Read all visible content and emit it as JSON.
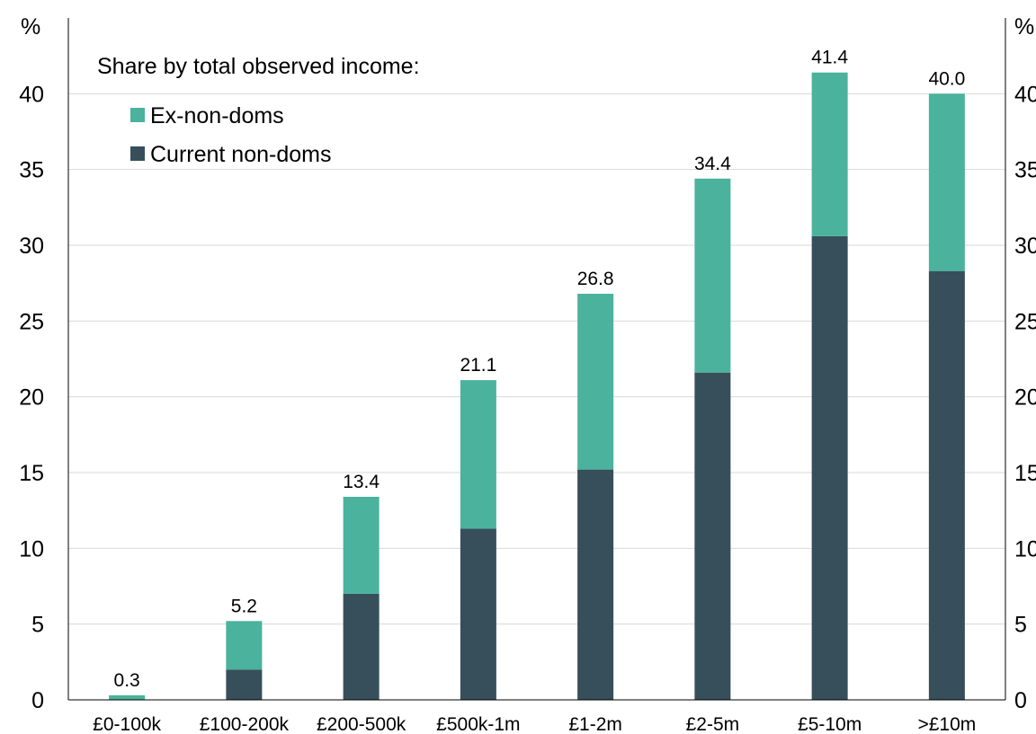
{
  "chart_data": {
    "type": "bar",
    "stacked": true,
    "title": "",
    "xlabel": "",
    "ylabel": "%",
    "ylabel_right": "%",
    "ylim": [
      0,
      45
    ],
    "yticks": [
      0,
      5,
      10,
      15,
      20,
      25,
      30,
      35,
      40
    ],
    "grid": true,
    "legend_title": "Share by total observed income:",
    "legend_position": "top-left",
    "categories": [
      "£0-100k",
      "£100-200k",
      "£200-500k",
      "£500k-1m",
      "£1-2m",
      "£2-5m",
      "£5-10m",
      ">£10m"
    ],
    "series": [
      {
        "name": "Current non-doms",
        "color": "#364f5b",
        "values": [
          0.0,
          2.0,
          7.0,
          11.3,
          15.2,
          21.6,
          30.6,
          28.3
        ]
      },
      {
        "name": "Ex-non-doms",
        "color": "#4bb29d",
        "values": [
          0.3,
          3.2,
          6.4,
          9.8,
          11.6,
          12.8,
          10.8,
          11.7
        ]
      }
    ],
    "totals": [
      "0.3",
      "5.2",
      "13.4",
      "21.1",
      "26.8",
      "34.4",
      "41.4",
      "40.0"
    ]
  }
}
